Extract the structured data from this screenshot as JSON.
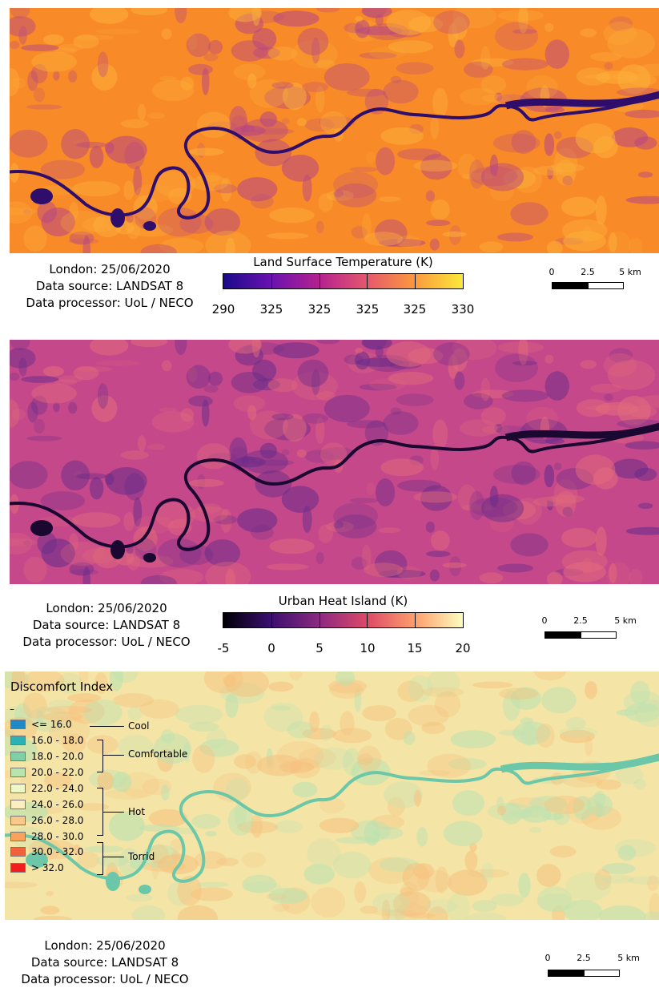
{
  "panels": [
    {
      "caption": {
        "line1": "London: 25/06/2020",
        "line2": "Data source: LANDSAT 8",
        "line3": "Data processor: UoL / NECO"
      },
      "colorbar": {
        "title": "Land Surface Temperature (K)",
        "labels": [
          "290",
          "325",
          "325",
          "325",
          "325",
          "330"
        ],
        "colors": [
          "#1a0a8a",
          "#6a12b0",
          "#b4228f",
          "#e5586d",
          "#fb9a3c",
          "#fbe83b"
        ]
      },
      "scale": {
        "labels": [
          "0",
          "2.5",
          "5 km"
        ]
      },
      "colors": {
        "base": "#f98a28",
        "light": "#fbae3a",
        "dark": "#b84782",
        "water": "#2e0e6a"
      }
    },
    {
      "caption": {
        "line1": "London: 25/06/2020",
        "line2": "Data source: LANDSAT 8",
        "line3": "Data processor: UoL / NECO"
      },
      "colorbar": {
        "title": "Urban Heat Island (K)",
        "labels": [
          "-5",
          "0",
          "5",
          "10",
          "15",
          "20"
        ],
        "colors": [
          "#000004",
          "#3b0f70",
          "#8c2981",
          "#de4968",
          "#fe9f6d",
          "#fcfdbf"
        ]
      },
      "scale": {
        "labels": [
          "0",
          "2.5",
          "5 km"
        ]
      },
      "colors": {
        "base": "#c5488a",
        "light": "#e26a7c",
        "dark": "#6a2c8a",
        "water": "#1a0830"
      }
    },
    {
      "caption": {
        "line1": "London: 25/06/2020",
        "line2": "Data source: LANDSAT 8",
        "line3": "Data processor: UoL / NECO"
      },
      "scale": {
        "labels": [
          "0",
          "2.5",
          "5 km"
        ]
      },
      "colors": {
        "base": "#f4e4a6",
        "light": "#f6c17e",
        "dark": "#b9e2b2",
        "water": "#6cc7a8"
      },
      "legend": {
        "title": "Discomfort Index",
        "marker": "–",
        "items": [
          {
            "label": "<= 16.0",
            "color": "#1f88c6"
          },
          {
            "label": "16.0 - 18.0",
            "color": "#2bb2b4"
          },
          {
            "label": "18.0 - 20.0",
            "color": "#7fd0a6"
          },
          {
            "label": "20.0 - 22.0",
            "color": "#b9e4ae"
          },
          {
            "label": "22.0 - 24.0",
            "color": "#eef7c8"
          },
          {
            "label": "24.0 - 26.0",
            "color": "#fbefc2"
          },
          {
            "label": "26.0 - 28.0",
            "color": "#f8c98a"
          },
          {
            "label": "28.0 - 30.0",
            "color": "#f7a35c"
          },
          {
            "label": "30.0 - 32.0",
            "color": "#f2603c"
          },
          {
            "label": "> 32.0",
            "color": "#f21e1e"
          }
        ],
        "groups": [
          "Cool",
          "Comfortable",
          "Hot",
          "Torrid"
        ]
      }
    }
  ]
}
